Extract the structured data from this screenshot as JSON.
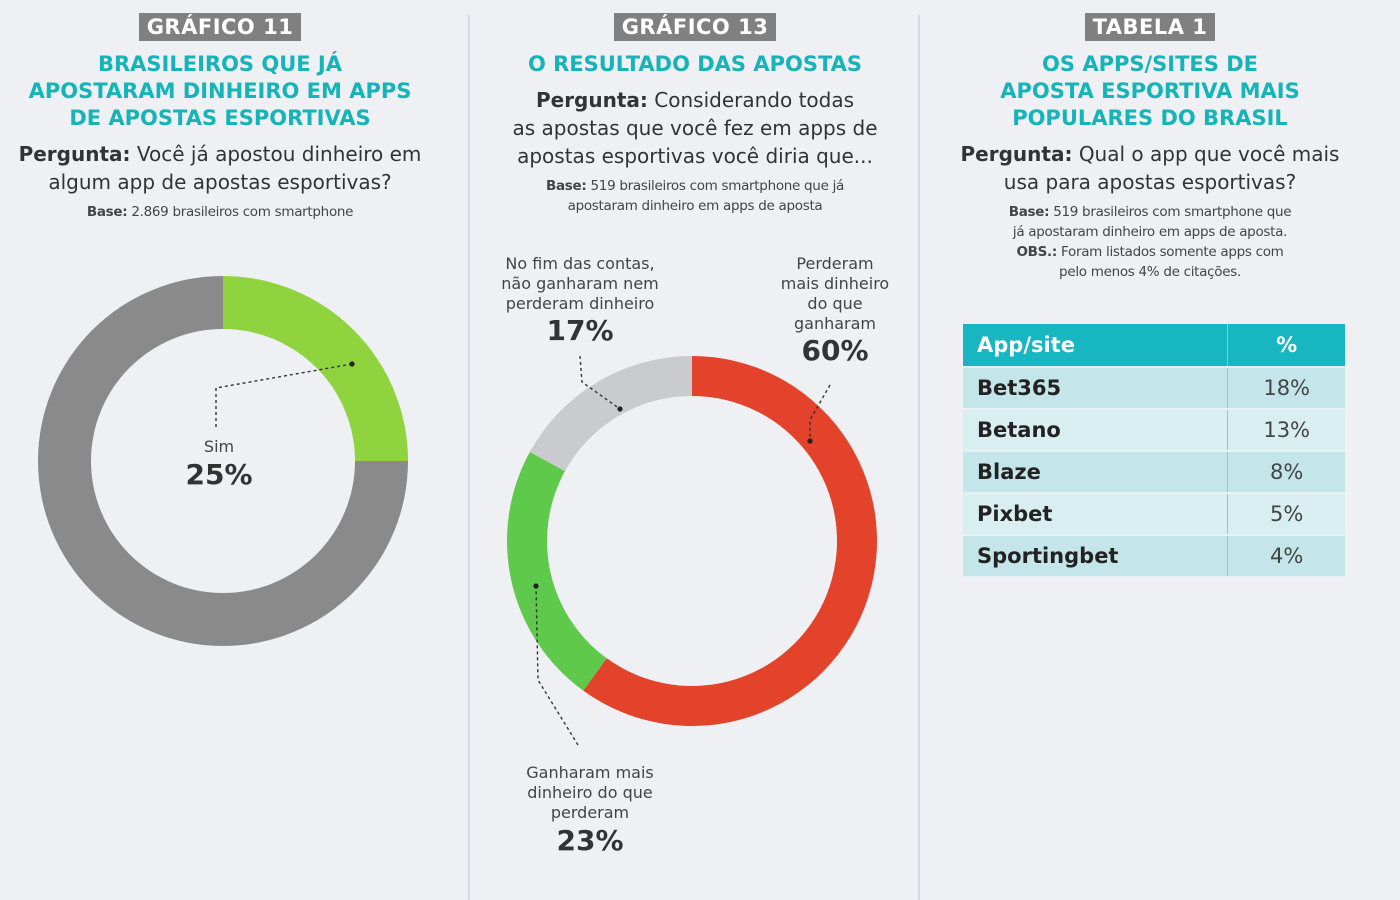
{
  "panel1": {
    "tag": "GRÁFICO 11",
    "title": [
      "BRASILEIROS QUE JÁ",
      "APOSTARAM DINHEIRO EM APPS",
      "DE APOSTAS ESPORTIVAS"
    ],
    "question_label": "Pergunta:",
    "question_text": [
      "Você já apostou dinheiro em",
      "algum app de apostas esportivas?"
    ],
    "base_label": "Base:",
    "base_text": "2.869 brasileiros com smartphone"
  },
  "panel2": {
    "tag": "GRÁFICO 13",
    "title": [
      "O RESULTADO DAS APOSTAS"
    ],
    "question_label": "Pergunta:",
    "question_text": [
      "Considerando todas",
      "as apostas que você fez em apps de",
      "apostas esportivas você diria que..."
    ],
    "base_label": "Base:",
    "base_text": [
      "519 brasileiros com smartphone que já",
      "apostaram dinheiro em apps de aposta"
    ]
  },
  "panel3": {
    "tag": "TABELA 1",
    "title": [
      "OS APPS/SITES DE",
      "APOSTA ESPORTIVA MAIS",
      "POPULARES DO BRASIL"
    ],
    "question_label": "Pergunta:",
    "question_text": [
      "Qual o app que você mais",
      "usa para apostas esportivas?"
    ],
    "base_label": "Base:",
    "base_text": [
      "519 brasileiros com smartphone que",
      "já apostaram dinheiro em apps de aposta."
    ],
    "obs_label": "OBS.:",
    "obs_text": [
      "Foram listados somente apps com",
      "pelo menos 4% de citações."
    ]
  },
  "chart_data": [
    {
      "type": "pie",
      "donut": true,
      "slices": [
        {
          "label": "Sim",
          "value": 25,
          "display": "25%",
          "color": "#8fd43f"
        },
        {
          "label": "",
          "value": 75,
          "color": "#8a8a8a"
        }
      ]
    },
    {
      "type": "pie",
      "donut": true,
      "slices": [
        {
          "label": [
            "Perderam",
            "mais dinheiro",
            "do que",
            "ganharam"
          ],
          "value": 60,
          "display": "60%",
          "color": "#e2432a"
        },
        {
          "label": [
            "Ganharam mais",
            "dinheiro do que",
            "perderam"
          ],
          "value": 23,
          "display": "23%",
          "color": "#5ec94a"
        },
        {
          "label": [
            "No fim das contas,",
            "não ganharam nem",
            "perderam dinheiro"
          ],
          "value": 17,
          "display": "17%",
          "color": "#c9cbcf"
        }
      ]
    },
    {
      "type": "table",
      "columns": [
        "App/site",
        "%"
      ],
      "rows": [
        [
          "Bet365",
          "18%"
        ],
        [
          "Betano",
          "13%"
        ],
        [
          "Blaze",
          "8%"
        ],
        [
          "Pixbet",
          "5%"
        ],
        [
          "Sportingbet",
          "4%"
        ]
      ]
    }
  ]
}
